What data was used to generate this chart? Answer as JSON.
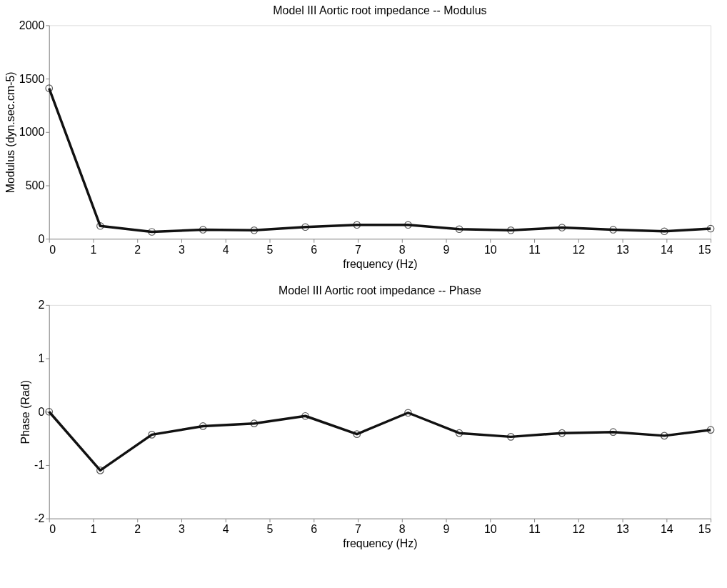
{
  "chart_data": [
    {
      "type": "line",
      "title": "Model III Aortic root impedance -- Modulus",
      "xlabel": "frequency (Hz)",
      "ylabel": "Modulus (dyn.sec.cm-5)",
      "x": [
        0,
        1.16,
        2.33,
        3.49,
        4.65,
        5.81,
        6.98,
        8.14,
        9.3,
        10.47,
        11.63,
        12.79,
        13.95,
        15
      ],
      "series": [
        {
          "color": "#111111",
          "values": [
            1410,
            120,
            65,
            85,
            80,
            110,
            130,
            130,
            90,
            80,
            105,
            85,
            70,
            95
          ]
        }
      ],
      "xlim": [
        0,
        15
      ],
      "xticks": [
        0,
        1,
        2,
        3,
        4,
        5,
        6,
        7,
        8,
        9,
        10,
        11,
        12,
        13,
        14,
        15
      ],
      "ylim": [
        0,
        2000
      ],
      "yticks": [
        0,
        500,
        1000,
        1500,
        2000
      ],
      "grid": false,
      "marker": "circle",
      "line_style": "solid"
    },
    {
      "type": "line",
      "title": "Model III Aortic root impedance -- Phase",
      "xlabel": "frequency (Hz)",
      "ylabel": "Phase (Rad)",
      "x": [
        0,
        1.16,
        2.33,
        3.49,
        4.65,
        5.81,
        6.98,
        8.14,
        9.3,
        10.47,
        11.63,
        12.79,
        13.95,
        15
      ],
      "series": [
        {
          "color": "#111111",
          "values": [
            0,
            -1.1,
            -0.43,
            -0.27,
            -0.22,
            -0.08,
            -0.42,
            -0.02,
            -0.4,
            -0.47,
            -0.4,
            -0.38,
            -0.45,
            -0.34
          ]
        }
      ],
      "xlim": [
        0,
        15
      ],
      "xticks": [
        0,
        1,
        2,
        3,
        4,
        5,
        6,
        7,
        8,
        9,
        10,
        11,
        12,
        13,
        14,
        15
      ],
      "ylim": [
        -2,
        2
      ],
      "yticks": [
        -2,
        -1,
        0,
        1,
        2
      ],
      "grid": false,
      "marker": "circle",
      "line_style": "solid"
    }
  ]
}
